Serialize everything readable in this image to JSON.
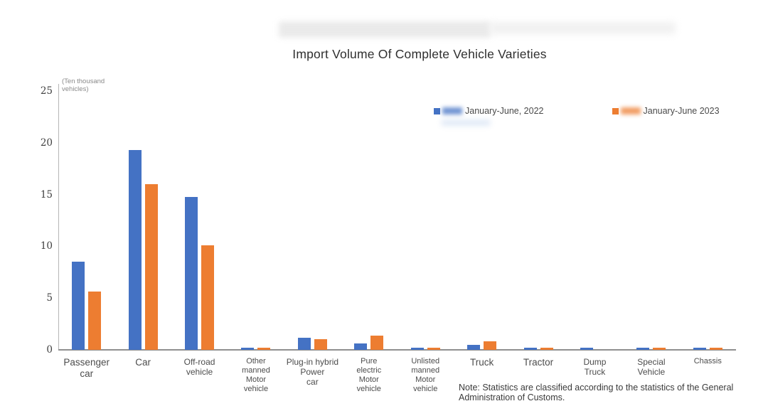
{
  "title": "Import Volume Of Complete Vehicle Varieties",
  "legend": {
    "items": [
      {
        "label": "January-June, 2022",
        "color": "#4472C4"
      },
      {
        "label": "January-June 2023",
        "color": "#ED7D31"
      }
    ]
  },
  "y_axis": {
    "unit_label": "(Ten thousand\nvehicles)",
    "ticks": [
      0,
      5,
      10,
      15,
      20,
      25
    ]
  },
  "note": "Note: Statistics are classified according to the statistics of the General Administration of Customs.",
  "colors": {
    "series_2022": "#4472C4",
    "series_2023": "#ED7D31",
    "axis": "#8f8f8f"
  },
  "chart_data": {
    "type": "bar",
    "title": "Import Volume Of Complete Vehicle Varieties",
    "xlabel": "",
    "ylabel": "(Ten thousand vehicles)",
    "ylim": [
      0,
      25
    ],
    "y_ticks": [
      0,
      5,
      10,
      15,
      20,
      25
    ],
    "grid": false,
    "legend_position": "top-right",
    "categories": [
      "Passenger car",
      "Car",
      "Off-road vehicle",
      "Other manned Motor vehicle",
      "Plug-in hybrid Power car",
      "Pure electric Motor vehicle",
      "Unlisted manned Motor vehicle",
      "Truck",
      "Tractor",
      "Dump Truck",
      "Special Vehicle",
      "Chassis"
    ],
    "category_label_lines": [
      [
        "Passenger",
        "car"
      ],
      [
        "Car"
      ],
      [
        "Off-road",
        "vehicle"
      ],
      [
        "Other",
        "manned",
        "Motor",
        "vehicle"
      ],
      [
        "Plug-in hybrid",
        "Power",
        "car"
      ],
      [
        "Pure",
        "electric",
        "Motor",
        "vehicle"
      ],
      [
        "Unlisted",
        "manned",
        "Motor",
        "vehicle"
      ],
      [
        "Truck"
      ],
      [
        "Tractor"
      ],
      [
        "Dump",
        "Truck"
      ],
      [
        "Special",
        "Vehicle"
      ],
      [
        "Chassis"
      ]
    ],
    "category_label_size": [
      "large",
      "large",
      "medium",
      "small",
      "medium",
      "small",
      "small",
      "large",
      "large",
      "medium",
      "medium",
      "small"
    ],
    "series": [
      {
        "name": "January-June, 2022",
        "color": "#4472C4",
        "values": [
          8.5,
          19.3,
          14.8,
          0.2,
          1.2,
          0.6,
          0.2,
          0.5,
          0.2,
          0.2,
          0.2,
          0.2
        ]
      },
      {
        "name": "January-June 2023",
        "color": "#ED7D31",
        "values": [
          5.6,
          16.0,
          10.1,
          0.2,
          1.0,
          1.4,
          0.2,
          0.8,
          0.2,
          0,
          0.2,
          0.2
        ]
      }
    ]
  }
}
